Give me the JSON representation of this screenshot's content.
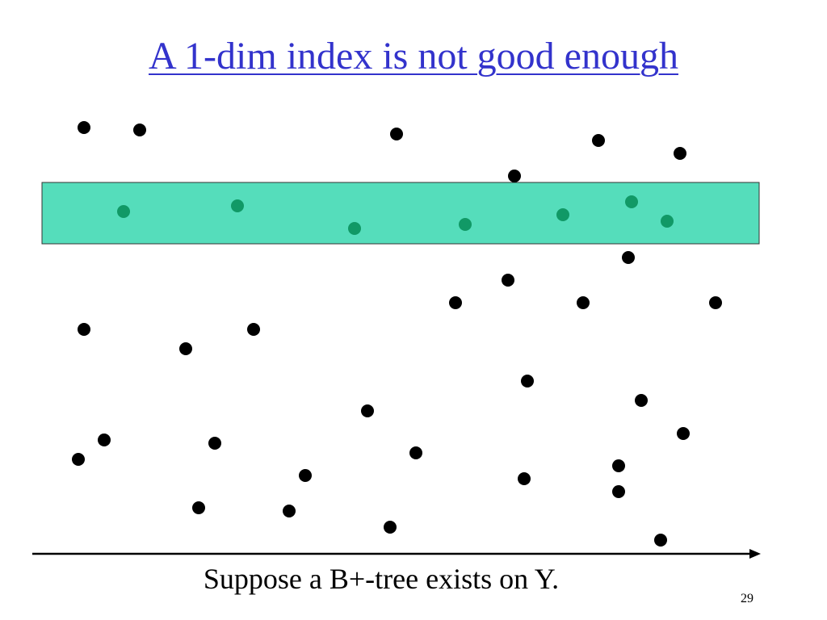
{
  "slide": {
    "title": "A 1-dim index is not good enough",
    "caption": "Suppose a B+-tree exists on Y.",
    "page_number": "29"
  },
  "colors": {
    "title": "#3333cc",
    "band_fill": "#55ddbb",
    "band_stroke": "#333333",
    "point_outside": "#000000",
    "point_inside": "#119966",
    "axis": "#000000"
  }
}
